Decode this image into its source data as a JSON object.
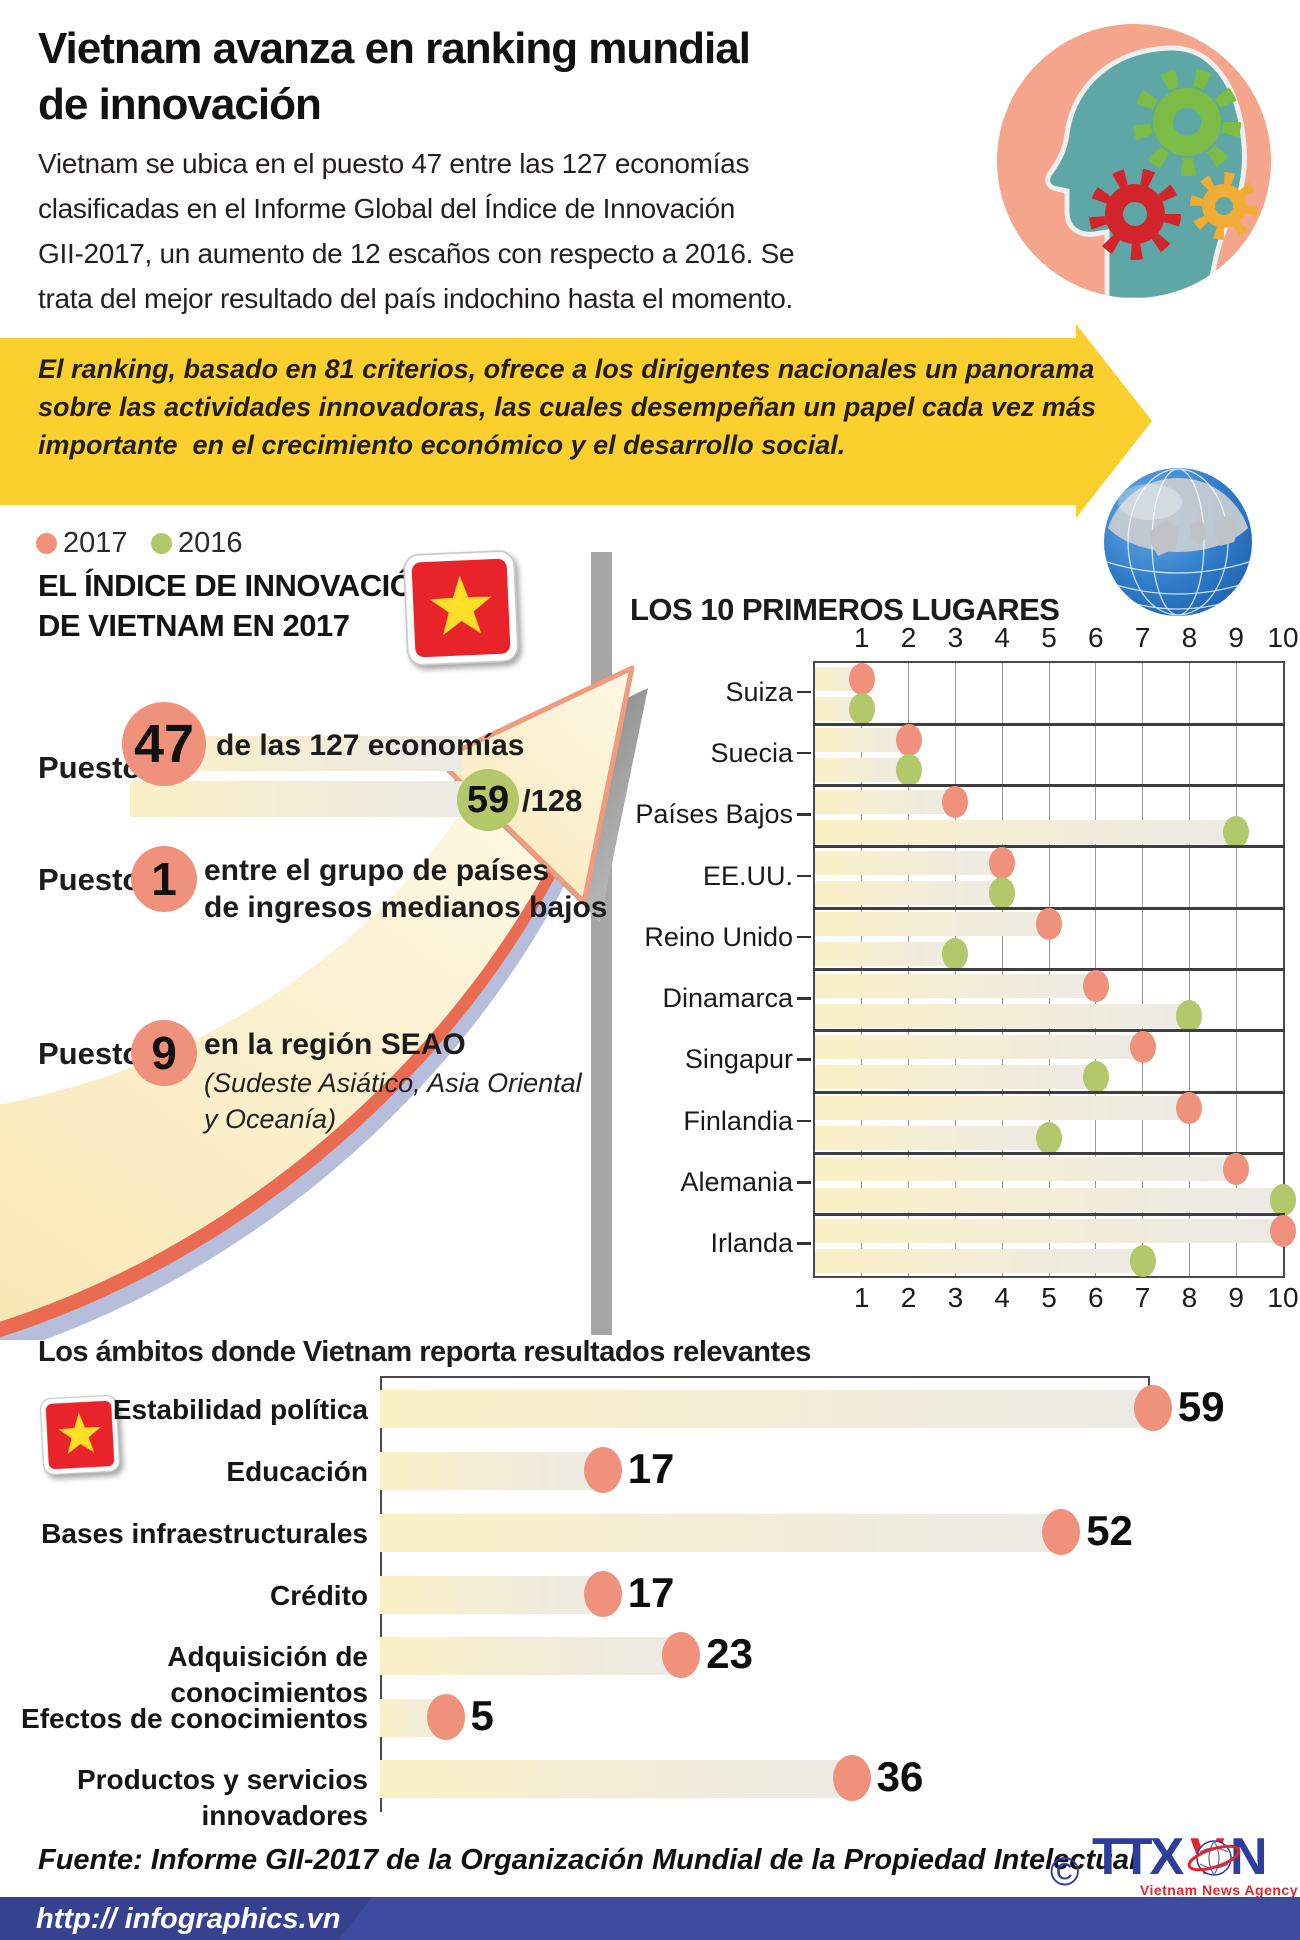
{
  "header": {
    "title_lines": [
      "Vietnam avanza en ranking mundial",
      "de innovación"
    ],
    "paragraph_lines": [
      "Vietnam se ubica en el puesto 47 entre las 127 economías",
      "clasificadas en el Informe Global del Índice de Innovación",
      "GII-2017, un aumento de 12 escaños con respecto a 2016. Se",
      "trata del mejor resultado del país indochino hasta el momento."
    ]
  },
  "banner": {
    "lines": [
      "El ranking, basado en 81 criterios, ofrece a los dirigentes nacionales un panorama",
      "sobre las actividades innovadoras, las cuales desempeñan un papel cada vez más",
      "importante  en el crecimiento económico y el desarrollo social."
    ]
  },
  "legend": {
    "items": [
      {
        "label": "2017",
        "color": "#F0917B"
      },
      {
        "label": "2016",
        "color": "#B3C76B"
      }
    ]
  },
  "vietnam_index": {
    "title_lines": [
      "EL ÍNDICE DE INNOVACIÓN",
      "DE VIETNAM EN 2017"
    ],
    "puesto_label": "Puesto",
    "rank_overall": "47",
    "rank_overall_text": "de las 127 economías",
    "rank_2016": "59",
    "rank_2016_suffix": "/128",
    "rank_group": "1",
    "rank_group_lines": [
      "entre el grupo de países",
      "de ingresos medianos bajos"
    ],
    "rank_region": "9",
    "rank_region_text": "en la región SEAO",
    "rank_region_note_lines": [
      "(Sudeste Asiático, Asia Oriental",
      "y Oceanía)"
    ]
  },
  "chart_data": [
    {
      "type": "scatter",
      "title": "LOS 10 PRIMEROS LUGARES",
      "orientation": "horizontal",
      "xlim": [
        0,
        10
      ],
      "axis_ticks": [
        1,
        2,
        3,
        4,
        5,
        6,
        7,
        8,
        9,
        10
      ],
      "grid": true,
      "legend_position": "top-left-of-page",
      "categories": [
        "Suiza",
        "Suecia",
        "Países Bajos",
        "EE.UU.",
        "Reino Unido",
        "Dinamarca",
        "Singapur",
        "Finlandia",
        "Alemania",
        "Irlanda"
      ],
      "series": [
        {
          "name": "2017",
          "color": "#F0917B",
          "values": [
            1,
            2,
            3,
            4,
            5,
            6,
            7,
            8,
            9,
            10
          ]
        },
        {
          "name": "2016",
          "color": "#B3C76B",
          "values": [
            1,
            2,
            9,
            4,
            3,
            8,
            6,
            5,
            10,
            7
          ]
        }
      ]
    },
    {
      "type": "bar",
      "title": "Los ámbitos donde Vietnam reporta resultados relevantes",
      "orientation": "horizontal",
      "xlim": [
        0,
        60
      ],
      "grid": false,
      "categories": [
        "Estabilidad política",
        "Educación",
        "Bases infraestructurales",
        "Crédito",
        "Adquisición de conocimientos",
        "Efectos de conocimientos",
        "Productos y servicios innovadores"
      ],
      "category_lines": [
        [
          "Estabilidad política"
        ],
        [
          "Educación"
        ],
        [
          "Bases infraestructurales"
        ],
        [
          "Crédito"
        ],
        [
          "Adquisición de conocimientos"
        ],
        [
          "Efectos de conocimientos"
        ],
        [
          "Productos y servicios",
          "innovadores"
        ]
      ],
      "values": [
        59,
        17,
        52,
        17,
        23,
        5,
        36
      ],
      "color": "#F0917B"
    }
  ],
  "footer": {
    "fuente": "Fuente: Informe GII-2017 de la Organización Mundial de la Propiedad Intelectual",
    "copyright": "©",
    "agency_t1": "TTX",
    "agency_t2": "V",
    "agency_t3": "N",
    "agency_sub": "Vietnam News Agency",
    "url": "http:// infographics.vn"
  },
  "colors": {
    "salmon": "#F0917B",
    "green": "#B3C76B",
    "yellow": "#FBCF2D",
    "bar_from": "#FBF0C4",
    "bar_mid": "#F5EED6",
    "bar_to": "#EBEAE5",
    "divider": "#A6A6A6",
    "chart_line": "#4A4A4A",
    "grid": "#999999",
    "blue_bar": "#3D4B9E",
    "blue_bar_dark": "#36428F",
    "flag_red": "#E8232A",
    "star_yellow": "#FFDE28",
    "logo_blue": "#2E3D9A",
    "logo_red": "#E3262B",
    "head_circle": "#F4A58B",
    "head_teal": "#5FA7A6",
    "gear_green": "#7CBB45",
    "gear_red": "#D2252B",
    "gear_yellow": "#F0AC33"
  }
}
